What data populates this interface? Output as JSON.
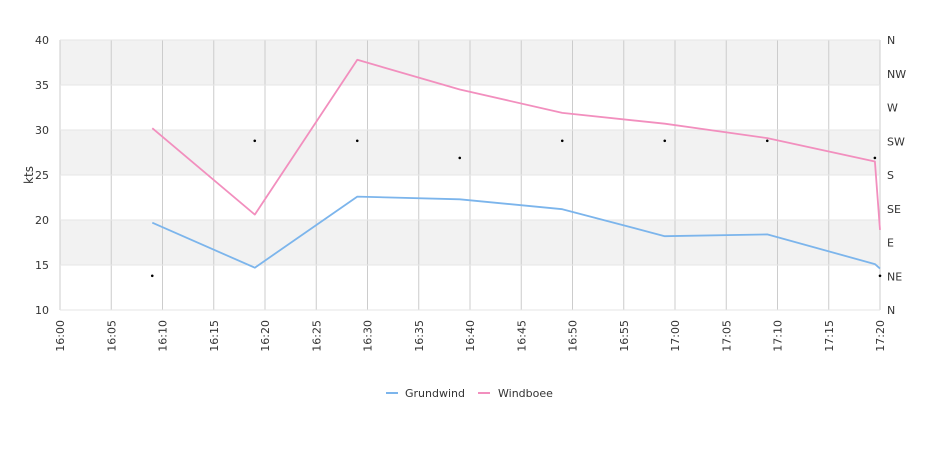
{
  "chart_data": {
    "type": "line",
    "ylabel": "kts",
    "ylim": [
      10,
      40
    ],
    "y_ticks": [
      "10",
      "15",
      "20",
      "25",
      "30",
      "35",
      "40"
    ],
    "y2_ticks": [
      "N",
      "NE",
      "E",
      "SE",
      "S",
      "SW",
      "W",
      "NW",
      "N"
    ],
    "x_ticks": [
      "16:00",
      "16:05",
      "16:10",
      "16:15",
      "16:20",
      "16:25",
      "16:30",
      "16:35",
      "16:40",
      "16:45",
      "16:50",
      "16:55",
      "17:00",
      "17:05",
      "17:10",
      "17:15",
      "17:20"
    ],
    "grid": true,
    "legend_position": "bottom",
    "series": [
      {
        "name": "Grundwind",
        "color": "#7cb5ec",
        "x": [
          9,
          19,
          29,
          39,
          49,
          59,
          69,
          79.5,
          80
        ],
        "y": [
          19.7,
          14.7,
          22.6,
          22.3,
          21.2,
          18.2,
          18.4,
          15.1,
          14.6
        ]
      },
      {
        "name": "Windboee",
        "color": "#f28fbe",
        "x": [
          9,
          19,
          29,
          39,
          49,
          59,
          69,
          79.5,
          80
        ],
        "y": [
          30.2,
          20.6,
          37.8,
          34.5,
          31.9,
          30.7,
          29.1,
          26.5,
          18.9
        ]
      }
    ],
    "direction_points": {
      "color": "#000000",
      "x": [
        9,
        19,
        29,
        39,
        49,
        59,
        69,
        79.5,
        80
      ],
      "y": [
        13.8,
        28.8,
        28.8,
        26.9,
        28.8,
        28.8,
        28.8,
        26.9,
        13.8
      ]
    }
  }
}
